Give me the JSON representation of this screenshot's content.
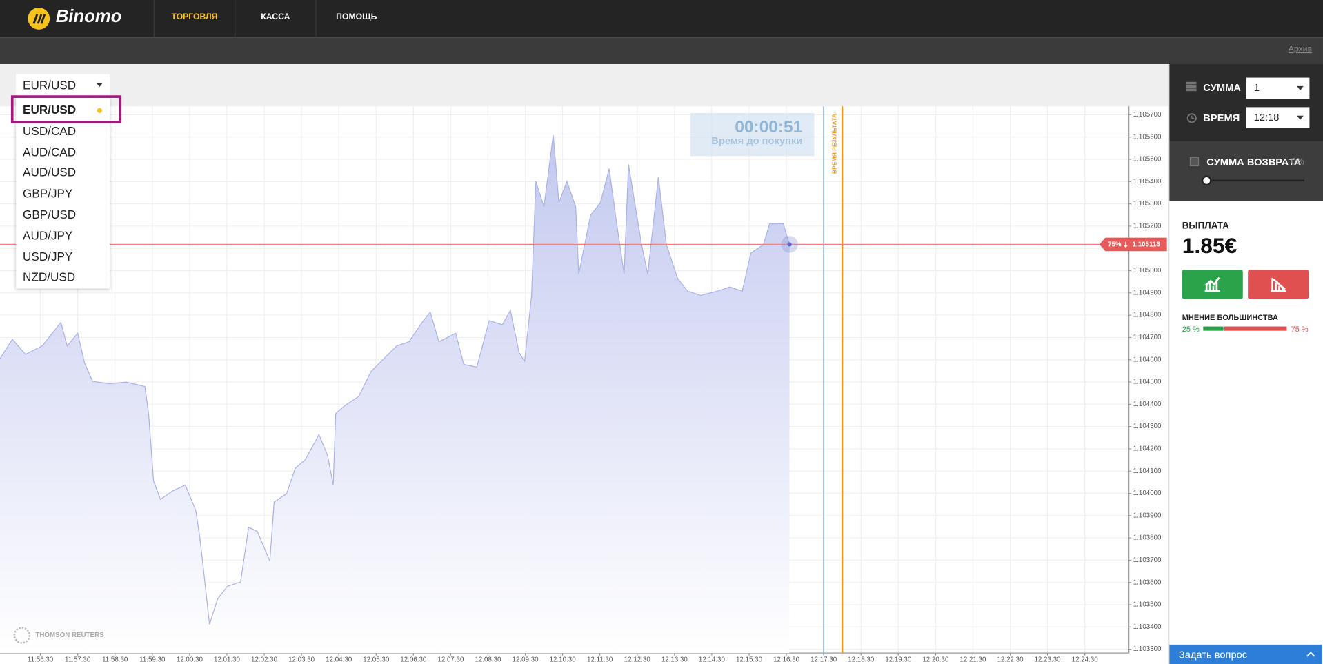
{
  "nav": {
    "logo": "Binomo",
    "items": [
      "ТОРГОВЛЯ",
      "КАССА",
      "ПОМОЩЬ"
    ],
    "active": 0
  },
  "toolbar": {
    "archive": "Архив"
  },
  "asset_select": {
    "selected": "EUR/USD",
    "options": [
      "EUR/USD",
      "USD/CAD",
      "AUD/CAD",
      "AUD/USD",
      "GBP/JPY",
      "GBP/USD",
      "AUD/JPY",
      "USD/JPY",
      "NZD/USD"
    ],
    "highlighted": 0
  },
  "timer": {
    "time": "00:00:51",
    "label": "Время до покупки"
  },
  "chart": {
    "type": "area",
    "color": "#aab3e6",
    "grid": true,
    "x": [
      "11:55:25",
      "11:55:45",
      "11:56:06",
      "11:56:33",
      "11:57:03",
      "11:57:13",
      "11:57:30",
      "11:57:41",
      "11:57:54",
      "11:58:21",
      "11:58:48",
      "11:59:18",
      "11:59:24",
      "11:59:32",
      "11:59:43",
      "12:00:03",
      "12:00:23",
      "12:00:40",
      "12:00:47",
      "12:00:53",
      "12:01:02",
      "12:01:15",
      "12:01:31",
      "12:01:52",
      "12:02:05",
      "12:02:19",
      "12:02:39",
      "12:02:46",
      "12:03:06",
      "12:03:20",
      "12:03:36",
      "12:03:58",
      "12:04:12",
      "12:04:21",
      "12:04:25",
      "12:04:41",
      "12:05:02",
      "12:05:22",
      "12:06:03",
      "12:06:23",
      "12:06:44",
      "12:06:57",
      "12:07:11",
      "12:07:38",
      "12:07:51",
      "12:08:12",
      "12:08:32",
      "12:08:53",
      "12:09:06",
      "12:09:20",
      "12:09:29",
      "12:09:40",
      "12:09:47",
      "12:10:00",
      "12:10:15",
      "12:10:24",
      "12:10:37",
      "12:10:51",
      "12:10:56",
      "12:11:15",
      "12:11:31",
      "12:11:45",
      "12:11:56",
      "12:12:09",
      "12:12:16",
      "12:12:37",
      "12:12:47",
      "12:13:04",
      "12:13:17",
      "12:13:35",
      "12:13:51",
      "12:14:12",
      "12:14:39",
      "12:14:59",
      "12:15:19",
      "12:15:33",
      "12:15:53",
      "12:16:03",
      "12:16:25",
      "12:16:35"
    ],
    "values": [
      1.104605,
      1.104692,
      1.104624,
      1.104662,
      1.104768,
      1.104662,
      1.104719,
      1.104586,
      1.104503,
      1.104492,
      1.104499,
      1.10448,
      1.104359,
      1.104056,
      1.103973,
      1.104011,
      1.104037,
      1.103923,
      1.103791,
      1.103639,
      1.103412,
      1.103526,
      1.103583,
      1.103602,
      1.103848,
      1.103829,
      1.103696,
      1.103961,
      1.103999,
      1.104113,
      1.104151,
      1.104264,
      1.10417,
      1.104037,
      1.104359,
      1.104397,
      1.104435,
      1.104548,
      1.104662,
      1.104681,
      1.104768,
      1.104814,
      1.104681,
      1.104719,
      1.104579,
      1.104567,
      1.104776,
      1.104757,
      1.104821,
      1.104632,
      1.104594,
      1.104889,
      1.105401,
      1.105287,
      1.105609,
      1.105306,
      1.105401,
      1.105287,
      1.104984,
      1.105249,
      1.105306,
      1.105458,
      1.10523,
      1.104984,
      1.105477,
      1.105117,
      1.104984,
      1.10542,
      1.105117,
      1.104965,
      1.104908,
      1.104889,
      1.104908,
      1.104927,
      1.104908,
      1.105079,
      1.105117,
      1.105211,
      1.105211,
      1.105118
    ],
    "xlim": [
      "11:55:25",
      "12:25:41"
    ],
    "ylim": [
      1.103283,
      1.105738
    ],
    "xticks": [
      "11:56:30",
      "11:57:30",
      "11:58:30",
      "11:59:30",
      "12:00:30",
      "12:01:30",
      "12:02:30",
      "12:03:30",
      "12:04:30",
      "12:05:30",
      "12:06:30",
      "12:07:30",
      "12:08:30",
      "12:09:30",
      "12:10:30",
      "12:11:30",
      "12:12:30",
      "12:13:30",
      "12:14:30",
      "12:15:30",
      "12:16:30",
      "12:17:30",
      "12:18:30",
      "12:19:30",
      "12:20:30",
      "12:21:30",
      "12:22:30",
      "12:23:30",
      "12:24:30"
    ],
    "yticks": [
      {
        "value": 1.1057,
        "label": "1.105700"
      },
      {
        "value": 1.1056,
        "label": "1.105600"
      },
      {
        "value": 1.1055,
        "label": "1.105500"
      },
      {
        "value": 1.1054,
        "label": "1.105400"
      },
      {
        "value": 1.1053,
        "label": "1.105300"
      },
      {
        "value": 1.1052,
        "label": "1.105200"
      },
      {
        "value": 1.1051,
        "label": "1.105100"
      },
      {
        "value": 1.105,
        "label": "1.105000"
      },
      {
        "value": 1.1049,
        "label": "1.104900"
      },
      {
        "value": 1.1048,
        "label": "1.104800"
      },
      {
        "value": 1.1047,
        "label": "1.104700"
      },
      {
        "value": 1.1046,
        "label": "1.104600"
      },
      {
        "value": 1.1045,
        "label": "1.104500"
      },
      {
        "value": 1.1044,
        "label": "1.104400"
      },
      {
        "value": 1.1043,
        "label": "1.104300"
      },
      {
        "value": 1.1042,
        "label": "1.104200"
      },
      {
        "value": 1.1041,
        "label": "1.104100"
      },
      {
        "value": 1.104,
        "label": "1.104000"
      },
      {
        "value": 1.1039,
        "label": "1.103900"
      },
      {
        "value": 1.1038,
        "label": "1.103800"
      },
      {
        "value": 1.1037,
        "label": "1.103700"
      },
      {
        "value": 1.1036,
        "label": "1.103600"
      },
      {
        "value": 1.1035,
        "label": "1.103500"
      },
      {
        "value": 1.1034,
        "label": "1.103400"
      },
      {
        "value": 1.1033,
        "label": "1.103300"
      }
    ],
    "current": {
      "value": 1.105118,
      "label": "75%"
    },
    "purchase_deadline": "12:17:30",
    "result_time": "12:18:00",
    "result_label": "ВРЕМЯ РЕЗУЛЬТАТА",
    "source": "THOMSON REUTERS"
  },
  "trade_panel": {
    "amount_label": "СУММА",
    "amount": "1",
    "time_label": "ВРЕМЯ",
    "time": "12:18",
    "refund_label": "СУММА ВОЗВРАТА",
    "refund": "0%",
    "payout_label": "ВЫПЛАТА",
    "payout": "1.85€",
    "majority": {
      "title": "МНЕНИЕ БОЛЬШИНСТВА",
      "values": [
        25,
        75
      ],
      "value_labels": [
        "25 %",
        "75 %"
      ],
      "colors": [
        "#2aa34a",
        "#e05050"
      ]
    }
  },
  "help": {
    "label": "Задать вопрос"
  }
}
